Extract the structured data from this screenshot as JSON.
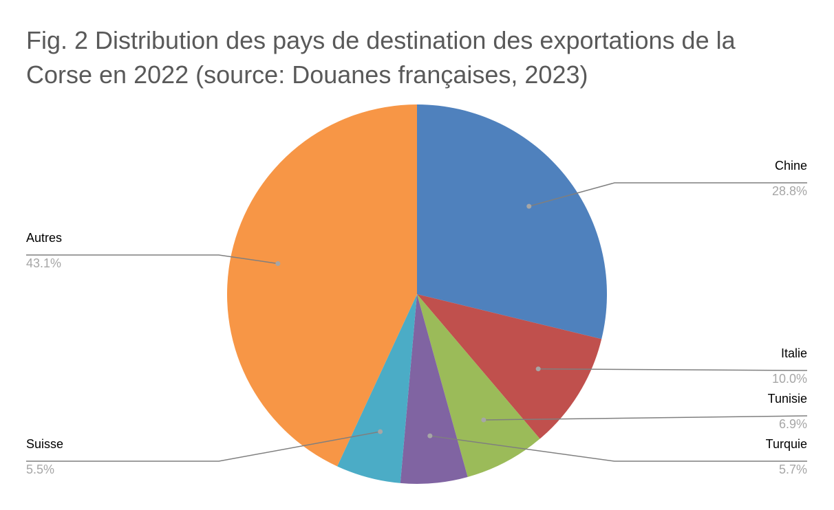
{
  "chart_data": {
    "type": "pie",
    "title": "Fig. 2 Distribution des pays de destination des exportations de la Corse en 2022 (source: Douanes françaises, 2023)",
    "categories": [
      "Chine",
      "Italie",
      "Tunisie",
      "Turquie",
      "Suisse",
      "Autres"
    ],
    "values": [
      28.8,
      10.0,
      6.9,
      5.7,
      5.5,
      43.1
    ],
    "value_labels": [
      "28.8%",
      "10.0%",
      "6.9%",
      "5.7%",
      "5.5%",
      "43.1%"
    ],
    "colors": [
      "#4f81bd",
      "#c0504d",
      "#9bbb59",
      "#8064a2",
      "#4bacc6",
      "#f79646"
    ]
  }
}
